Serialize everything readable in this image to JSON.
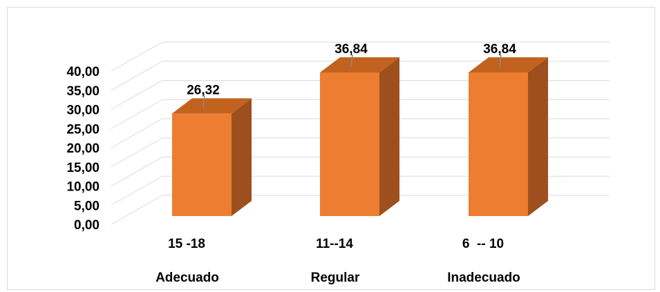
{
  "chart_data": {
    "type": "bar",
    "style": "3d-clustered-column",
    "categories": [
      {
        "range": "15 -18",
        "label": "Adecuado"
      },
      {
        "range": "11--14",
        "label": "Regular"
      },
      {
        "range": "6  -- 10",
        "label": "Inadecuado"
      }
    ],
    "values": [
      26.32,
      36.84,
      36.84
    ],
    "data_labels": [
      "26,32",
      "36,84",
      "36,84"
    ],
    "y_ticks": [
      "0,00",
      "5,00",
      "10,00",
      "15,00",
      "20,00",
      "25,00",
      "30,00",
      "35,00",
      "40,00"
    ],
    "ylim": [
      0,
      40
    ],
    "grid": true,
    "legend": "none",
    "title": "",
    "xlabel": "",
    "ylabel": "",
    "colors": {
      "bar_front": "#ED7D31",
      "bar_side": "#9E4F1E",
      "bar_top": "#C2621F",
      "grid": "#d9d9d9",
      "leader": "#8c8c8c"
    }
  }
}
